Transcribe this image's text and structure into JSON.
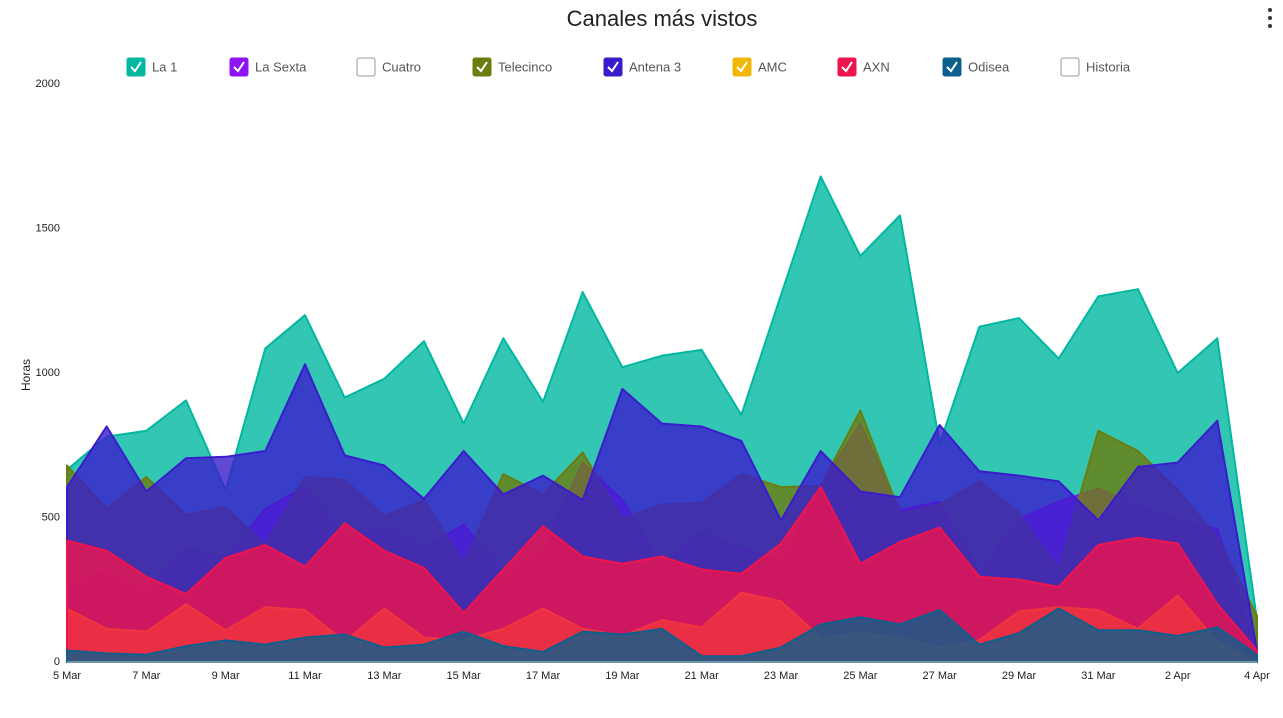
{
  "chart_data": {
    "type": "area",
    "title": "Canales más vistos",
    "y_label": "Horas",
    "categories": [
      "5 Mar",
      null,
      "7 Mar",
      null,
      "9 Mar",
      null,
      "11 Mar",
      null,
      "13 Mar",
      null,
      "15 Mar",
      null,
      "17 Mar",
      null,
      "19 Mar",
      null,
      "21 Mar",
      null,
      "23 Mar",
      null,
      "25 Mar",
      null,
      "27 Mar",
      null,
      "29 Mar",
      null,
      "31 Mar",
      null,
      "2 Apr",
      null,
      "4 Apr"
    ],
    "ylim": [
      0,
      2000
    ],
    "yticks": [
      0,
      500,
      1000,
      1500,
      2000
    ],
    "series": [
      {
        "name": "La 1",
        "color": "#00b8a0",
        "visible": true,
        "values": [
          665,
          780,
          800,
          905,
          595,
          1085,
          1200,
          915,
          980,
          1110,
          825,
          1120,
          900,
          1280,
          1020,
          1060,
          1080,
          855,
          1270,
          1680,
          1405,
          1545,
          755,
          1160,
          1190,
          1050,
          1265,
          1290,
          1000,
          1120,
          145
        ]
      },
      {
        "name": "La Sexta",
        "color": "#8f14f5",
        "visible": true,
        "values": [
          265,
          320,
          245,
          395,
          360,
          530,
          605,
          435,
          460,
          395,
          475,
          310,
          390,
          690,
          560,
          335,
          450,
          395,
          355,
          610,
          825,
          525,
          555,
          310,
          495,
          555,
          600,
          540,
          495,
          460,
          45
        ]
      },
      {
        "name": "Cuatro",
        "visible": false
      },
      {
        "name": "Telecinco",
        "color": "#6b7d0f",
        "visible": true,
        "values": [
          680,
          530,
          640,
          510,
          535,
          405,
          640,
          630,
          505,
          560,
          340,
          650,
          580,
          725,
          495,
          545,
          550,
          650,
          605,
          610,
          870,
          515,
          545,
          625,
          515,
          320,
          800,
          730,
          595,
          430,
          160
        ]
      },
      {
        "name": "Antena 3",
        "color": "#3a1ccc",
        "visible": true,
        "values": [
          605,
          815,
          590,
          705,
          710,
          730,
          1030,
          715,
          680,
          565,
          730,
          580,
          645,
          560,
          945,
          825,
          815,
          765,
          490,
          730,
          590,
          570,
          820,
          660,
          645,
          625,
          490,
          675,
          690,
          835,
          40
        ]
      },
      {
        "name": "AMC",
        "color": "#f2b705",
        "visible": true,
        "values": [
          185,
          115,
          105,
          200,
          110,
          190,
          180,
          70,
          185,
          85,
          75,
          115,
          185,
          115,
          90,
          145,
          120,
          240,
          210,
          85,
          100,
          85,
          50,
          75,
          175,
          190,
          180,
          115,
          230,
          70,
          0
        ]
      },
      {
        "name": "AXN",
        "color": "#f0144e",
        "visible": true,
        "values": [
          420,
          385,
          295,
          235,
          360,
          405,
          330,
          480,
          385,
          325,
          170,
          320,
          470,
          365,
          340,
          365,
          320,
          305,
          410,
          605,
          340,
          415,
          465,
          295,
          285,
          260,
          405,
          430,
          410,
          200,
          40
        ]
      },
      {
        "name": "Odisea",
        "color": "#0d5f8c",
        "visible": true,
        "values": [
          40,
          30,
          25,
          55,
          75,
          60,
          85,
          95,
          50,
          60,
          105,
          55,
          35,
          105,
          95,
          115,
          20,
          20,
          50,
          130,
          155,
          130,
          180,
          60,
          100,
          185,
          110,
          110,
          90,
          120,
          25
        ]
      },
      {
        "name": "Historia",
        "visible": false
      }
    ]
  }
}
